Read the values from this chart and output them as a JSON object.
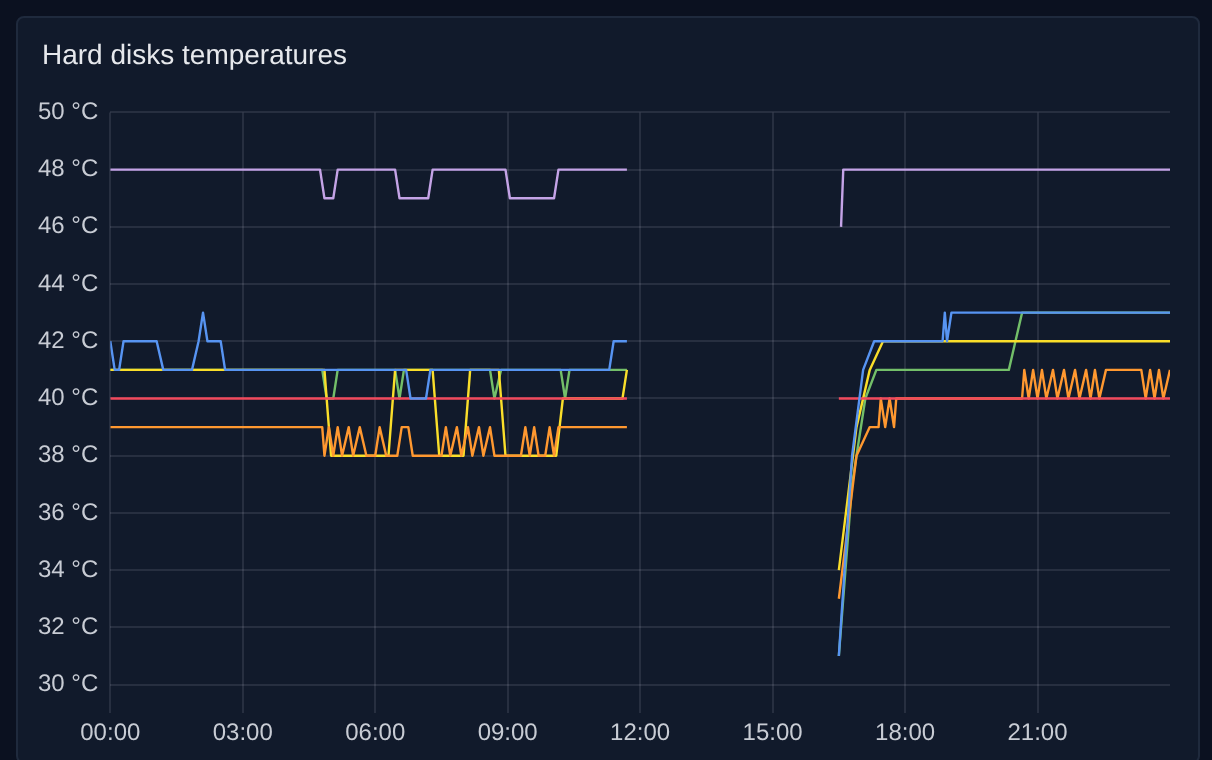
{
  "chart_data": {
    "type": "line",
    "title": "Hard disks temperatures",
    "xlim": [
      0,
      24
    ],
    "xticks": [
      {
        "value": 0,
        "label": "00:00"
      },
      {
        "value": 3,
        "label": "03:00"
      },
      {
        "value": 6,
        "label": "06:00"
      },
      {
        "value": 9,
        "label": "09:00"
      },
      {
        "value": 12,
        "label": "12:00"
      },
      {
        "value": 15,
        "label": "15:00"
      },
      {
        "value": 18,
        "label": "18:00"
      },
      {
        "value": 21,
        "label": "21:00"
      }
    ],
    "ylim": [
      29,
      50
    ],
    "yticks": [
      {
        "value": 30,
        "label": "30 °C"
      },
      {
        "value": 32,
        "label": "32 °C"
      },
      {
        "value": 34,
        "label": "34 °C"
      },
      {
        "value": 36,
        "label": "36 °C"
      },
      {
        "value": 38,
        "label": "38 °C"
      },
      {
        "value": 40,
        "label": "40 °C"
      },
      {
        "value": 42,
        "label": "42 °C"
      },
      {
        "value": 44,
        "label": "44 °C"
      },
      {
        "value": 46,
        "label": "46 °C"
      },
      {
        "value": 48,
        "label": "48 °C"
      },
      {
        "value": 50,
        "label": "50 °C"
      }
    ],
    "grid": true,
    "legend": false,
    "marker": "none",
    "line_style": "solid",
    "series": [
      {
        "color": "#73bf69",
        "x": [
          0,
          4.8,
          4.9,
          5.05,
          5.15,
          6.45,
          6.55,
          6.65,
          8.6,
          8.7,
          8.85,
          10.2,
          10.3,
          10.4,
          11.7,
          14,
          16.5,
          16.8,
          17.1,
          17.35,
          20.35,
          20.5,
          20.65,
          24
        ],
        "values": [
          41,
          41,
          40,
          40,
          41,
          41,
          40,
          41,
          41,
          40,
          41,
          41,
          40,
          41,
          41,
          null,
          31,
          37,
          40,
          41,
          41,
          42,
          43,
          43
        ]
      },
      {
        "color": "#fade2a",
        "x": [
          0,
          4.85,
          5.0,
          6.3,
          6.45,
          7.3,
          7.45,
          8.0,
          8.15,
          8.8,
          8.95,
          10.1,
          10.25,
          11.6,
          11.7,
          14,
          16.5,
          16.9,
          17.2,
          17.5,
          24
        ],
        "values": [
          41,
          41,
          38,
          38,
          41,
          41,
          38,
          38,
          41,
          41,
          38,
          38,
          40,
          40,
          41,
          null,
          34,
          39,
          41,
          42,
          42
        ]
      },
      {
        "color": "#ff9830",
        "x": [
          0,
          4.8,
          4.85,
          4.95,
          5.05,
          5.15,
          5.25,
          5.4,
          5.5,
          5.65,
          5.8,
          6.0,
          6.1,
          6.25,
          6.5,
          6.6,
          6.75,
          6.85,
          7.5,
          7.6,
          7.7,
          7.85,
          7.95,
          8.1,
          8.2,
          8.35,
          8.45,
          8.6,
          8.7,
          9.3,
          9.4,
          9.5,
          9.6,
          9.7,
          9.85,
          9.95,
          10.05,
          10.15,
          10.3,
          11.7,
          14,
          16.5,
          16.9,
          17.2,
          17.4,
          17.45,
          17.55,
          17.65,
          17.75,
          17.8,
          20.65,
          20.7,
          20.8,
          20.9,
          21.0,
          21.1,
          21.2,
          21.35,
          21.45,
          21.6,
          21.7,
          21.85,
          21.95,
          22.1,
          22.2,
          22.3,
          22.4,
          22.55,
          23.35,
          23.45,
          23.55,
          23.65,
          23.75,
          23.85,
          24
        ],
        "values": [
          39,
          39,
          38,
          39,
          38,
          39,
          38,
          39,
          38,
          39,
          38,
          38,
          39,
          38,
          38,
          39,
          39,
          38,
          38,
          39,
          38,
          39,
          38,
          39,
          38,
          39,
          38,
          39,
          38,
          38,
          39,
          38,
          39,
          38,
          38,
          39,
          38,
          39,
          39,
          39,
          null,
          33,
          38,
          39,
          39,
          40,
          39,
          40,
          39,
          40,
          40,
          41,
          40,
          41,
          40,
          41,
          40,
          41,
          40,
          41,
          40,
          41,
          40,
          41,
          40,
          41,
          40,
          41,
          41,
          40,
          41,
          40,
          41,
          40,
          41
        ]
      },
      {
        "color": "#f2495c",
        "x": [
          0,
          11.7,
          14,
          16.5,
          24
        ],
        "values": [
          40,
          40,
          null,
          40,
          40
        ]
      },
      {
        "color": "#5794f2",
        "x": [
          0,
          0.1,
          0.2,
          0.3,
          1.05,
          1.2,
          1.85,
          2.0,
          2.1,
          2.2,
          2.5,
          2.6,
          6.7,
          6.8,
          7.15,
          7.25,
          11.3,
          11.4,
          11.7,
          14,
          16.5,
          16.8,
          17.05,
          17.3,
          18.85,
          18.9,
          18.95,
          19.05,
          24
        ],
        "values": [
          42,
          41,
          41,
          42,
          42,
          41,
          41,
          42,
          43,
          42,
          42,
          41,
          41,
          40,
          40,
          41,
          41,
          42,
          42,
          null,
          31,
          38,
          41,
          42,
          42,
          43,
          42,
          43,
          43
        ]
      },
      {
        "color": "#c4a3e6",
        "x": [
          0,
          4.75,
          4.85,
          5.05,
          5.15,
          6.45,
          6.55,
          7.2,
          7.3,
          8.95,
          9.05,
          10.05,
          10.15,
          11.7,
          14,
          16.55,
          16.6,
          24
        ],
        "values": [
          48,
          48,
          47,
          47,
          48,
          48,
          47,
          47,
          48,
          48,
          47,
          47,
          48,
          48,
          null,
          46,
          48,
          48
        ]
      }
    ]
  }
}
